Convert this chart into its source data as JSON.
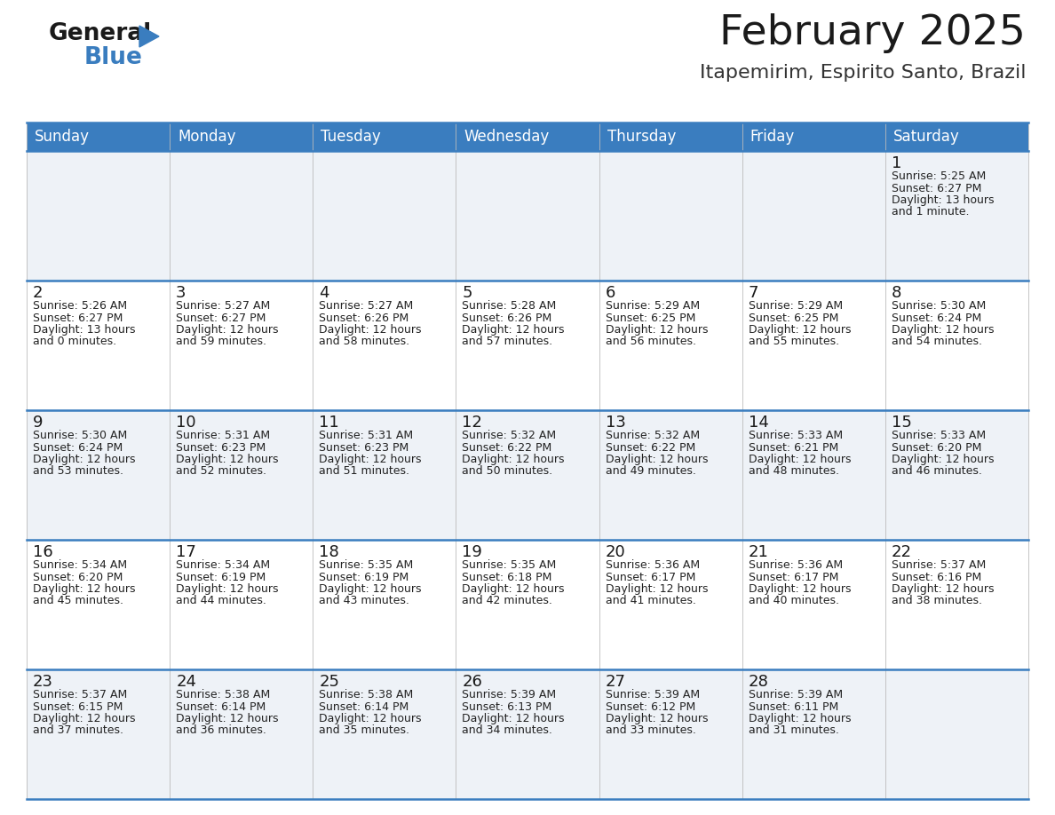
{
  "title": "February 2025",
  "subtitle": "Itapemirim, Espirito Santo, Brazil",
  "header_color": "#3a7dbf",
  "header_text_color": "#ffffff",
  "background_color": "#ffffff",
  "cell_bg_light": "#eef2f7",
  "cell_bg_white": "#ffffff",
  "day_names": [
    "Sunday",
    "Monday",
    "Tuesday",
    "Wednesday",
    "Thursday",
    "Friday",
    "Saturday"
  ],
  "title_fontsize": 34,
  "subtitle_fontsize": 16,
  "header_fontsize": 12,
  "day_num_fontsize": 12,
  "cell_fontsize": 9,
  "calendar": [
    [
      {
        "day": 0,
        "info": ""
      },
      {
        "day": 0,
        "info": ""
      },
      {
        "day": 0,
        "info": ""
      },
      {
        "day": 0,
        "info": ""
      },
      {
        "day": 0,
        "info": ""
      },
      {
        "day": 0,
        "info": ""
      },
      {
        "day": 1,
        "info": "Sunrise: 5:25 AM\nSunset: 6:27 PM\nDaylight: 13 hours\nand 1 minute."
      }
    ],
    [
      {
        "day": 2,
        "info": "Sunrise: 5:26 AM\nSunset: 6:27 PM\nDaylight: 13 hours\nand 0 minutes."
      },
      {
        "day": 3,
        "info": "Sunrise: 5:27 AM\nSunset: 6:27 PM\nDaylight: 12 hours\nand 59 minutes."
      },
      {
        "day": 4,
        "info": "Sunrise: 5:27 AM\nSunset: 6:26 PM\nDaylight: 12 hours\nand 58 minutes."
      },
      {
        "day": 5,
        "info": "Sunrise: 5:28 AM\nSunset: 6:26 PM\nDaylight: 12 hours\nand 57 minutes."
      },
      {
        "day": 6,
        "info": "Sunrise: 5:29 AM\nSunset: 6:25 PM\nDaylight: 12 hours\nand 56 minutes."
      },
      {
        "day": 7,
        "info": "Sunrise: 5:29 AM\nSunset: 6:25 PM\nDaylight: 12 hours\nand 55 minutes."
      },
      {
        "day": 8,
        "info": "Sunrise: 5:30 AM\nSunset: 6:24 PM\nDaylight: 12 hours\nand 54 minutes."
      }
    ],
    [
      {
        "day": 9,
        "info": "Sunrise: 5:30 AM\nSunset: 6:24 PM\nDaylight: 12 hours\nand 53 minutes."
      },
      {
        "day": 10,
        "info": "Sunrise: 5:31 AM\nSunset: 6:23 PM\nDaylight: 12 hours\nand 52 minutes."
      },
      {
        "day": 11,
        "info": "Sunrise: 5:31 AM\nSunset: 6:23 PM\nDaylight: 12 hours\nand 51 minutes."
      },
      {
        "day": 12,
        "info": "Sunrise: 5:32 AM\nSunset: 6:22 PM\nDaylight: 12 hours\nand 50 minutes."
      },
      {
        "day": 13,
        "info": "Sunrise: 5:32 AM\nSunset: 6:22 PM\nDaylight: 12 hours\nand 49 minutes."
      },
      {
        "day": 14,
        "info": "Sunrise: 5:33 AM\nSunset: 6:21 PM\nDaylight: 12 hours\nand 48 minutes."
      },
      {
        "day": 15,
        "info": "Sunrise: 5:33 AM\nSunset: 6:20 PM\nDaylight: 12 hours\nand 46 minutes."
      }
    ],
    [
      {
        "day": 16,
        "info": "Sunrise: 5:34 AM\nSunset: 6:20 PM\nDaylight: 12 hours\nand 45 minutes."
      },
      {
        "day": 17,
        "info": "Sunrise: 5:34 AM\nSunset: 6:19 PM\nDaylight: 12 hours\nand 44 minutes."
      },
      {
        "day": 18,
        "info": "Sunrise: 5:35 AM\nSunset: 6:19 PM\nDaylight: 12 hours\nand 43 minutes."
      },
      {
        "day": 19,
        "info": "Sunrise: 5:35 AM\nSunset: 6:18 PM\nDaylight: 12 hours\nand 42 minutes."
      },
      {
        "day": 20,
        "info": "Sunrise: 5:36 AM\nSunset: 6:17 PM\nDaylight: 12 hours\nand 41 minutes."
      },
      {
        "day": 21,
        "info": "Sunrise: 5:36 AM\nSunset: 6:17 PM\nDaylight: 12 hours\nand 40 minutes."
      },
      {
        "day": 22,
        "info": "Sunrise: 5:37 AM\nSunset: 6:16 PM\nDaylight: 12 hours\nand 38 minutes."
      }
    ],
    [
      {
        "day": 23,
        "info": "Sunrise: 5:37 AM\nSunset: 6:15 PM\nDaylight: 12 hours\nand 37 minutes."
      },
      {
        "day": 24,
        "info": "Sunrise: 5:38 AM\nSunset: 6:14 PM\nDaylight: 12 hours\nand 36 minutes."
      },
      {
        "day": 25,
        "info": "Sunrise: 5:38 AM\nSunset: 6:14 PM\nDaylight: 12 hours\nand 35 minutes."
      },
      {
        "day": 26,
        "info": "Sunrise: 5:39 AM\nSunset: 6:13 PM\nDaylight: 12 hours\nand 34 minutes."
      },
      {
        "day": 27,
        "info": "Sunrise: 5:39 AM\nSunset: 6:12 PM\nDaylight: 12 hours\nand 33 minutes."
      },
      {
        "day": 28,
        "info": "Sunrise: 5:39 AM\nSunset: 6:11 PM\nDaylight: 12 hours\nand 31 minutes."
      },
      {
        "day": 0,
        "info": ""
      }
    ]
  ]
}
